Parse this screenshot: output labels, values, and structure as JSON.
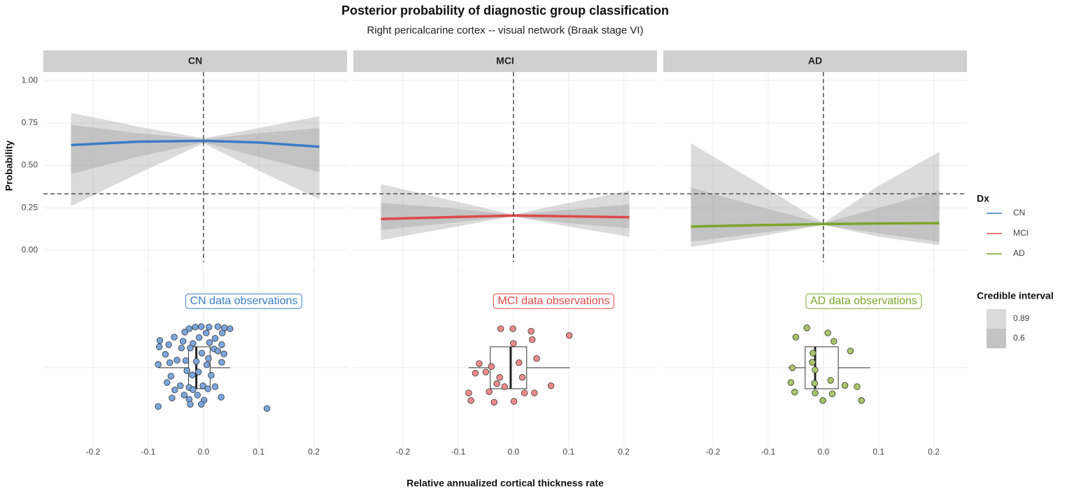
{
  "chart_data": {
    "type": "facet-ribbon",
    "title": "Posterior probability of diagnostic group classification",
    "subtitle": "Right pericalcarine cortex -- visual network (Braak stage VI)",
    "x_label": "Relative annualized cortical thickness rate",
    "y_label": "Probability",
    "xlim": [
      -0.29,
      0.26
    ],
    "xticks": [
      -0.2,
      -0.1,
      {
        "value": 0,
        "label": "0.0"
      },
      0.1,
      0.2
    ],
    "ylim": [
      -0.07,
      1.05
    ],
    "yticks": [
      {
        "value": 0,
        "label": "0.00"
      },
      0.25,
      {
        "value": 0.5,
        "label": "0.50"
      },
      0.75,
      {
        "value": 1,
        "label": "1.00"
      }
    ],
    "jitter_lim": [
      -1.9,
      2.43
    ],
    "threshold": 0.333,
    "vline": 0,
    "grid": true,
    "legend_title": "Dx",
    "ci_title": "Credible interval",
    "ci_levels": [
      0.89,
      0.6
    ],
    "band_color": "#999999",
    "x": [
      -0.24,
      -0.12,
      0,
      0.1,
      0.21
    ],
    "facets": [
      {
        "name": "CN",
        "color": "#3a7cc7",
        "point_color": "#7aa6dd",
        "label": "CN data observations",
        "mean": [
          0.62,
          0.64,
          0.645,
          0.635,
          0.61
        ],
        "lo89": [
          0.26,
          0.45,
          0.63,
          0.47,
          0.3
        ],
        "hi89": [
          0.81,
          0.73,
          0.66,
          0.72,
          0.79
        ],
        "lo60": [
          0.45,
          0.55,
          0.635,
          0.55,
          0.46
        ],
        "hi60": [
          0.74,
          0.69,
          0.655,
          0.69,
          0.72
        ],
        "points": {
          "x": [
            -0.026,
            -0.015,
            -0.004,
            0.01,
            0.026,
            0.038,
            0.048,
            -0.034,
            0.005,
            0.034,
            -0.079,
            -0.053,
            -0.037,
            -0.008,
            0.021,
            -0.08,
            -0.063,
            -0.019,
            0.011,
            0.033,
            -0.04,
            -0.024,
            0.019,
            0.026,
            -0.069,
            -0.003,
            0.037,
            -0.048,
            -0.032,
            -0.013,
            0.009,
            -0.082,
            -0.061,
            0.006,
            0.033,
            -0.03,
            -0.009,
            -0.059,
            -0.02,
            0.014,
            -0.066,
            -0.042,
            -0.026,
            -0.001,
            0.021,
            -0.052,
            -0.019,
            0.008,
            -0.035,
            -0.011,
            0.032,
            -0.057,
            -0.026,
            0.001,
            -0.082,
            -0.024,
            -0.004,
            0.115
          ],
          "jitter": [
            0.93,
            0.97,
            0.98,
            0.97,
            0.98,
            0.95,
            0.93,
            0.85,
            0.83,
            0.83,
            0.65,
            0.73,
            0.63,
            0.72,
            0.7,
            0.5,
            0.55,
            0.58,
            0.6,
            0.55,
            0.47,
            0.47,
            0.45,
            0.4,
            0.32,
            0.35,
            0.33,
            0.18,
            0.17,
            0.15,
            0.22,
            0.08,
            0.12,
            0.07,
            0.13,
            -0.07,
            -0.1,
            -0.2,
            -0.17,
            -0.18,
            -0.35,
            -0.43,
            -0.47,
            -0.43,
            -0.45,
            -0.53,
            -0.52,
            -0.5,
            -0.65,
            -0.65,
            -0.7,
            -0.72,
            -0.75,
            -0.77,
            -0.92,
            -0.87,
            -0.87,
            -0.97
          ]
        },
        "box": {
          "whisker_low": -0.081,
          "q1": -0.027,
          "median": -0.013,
          "q3": 0.012,
          "whisker_high": 0.048
        }
      },
      {
        "name": "MCI",
        "color": "#e04848",
        "point_color": "#ef8a8a",
        "label": "MCI data observations",
        "mean": [
          0.185,
          0.195,
          0.205,
          0.2,
          0.195
        ],
        "lo89": [
          0.06,
          0.13,
          0.2,
          0.14,
          0.08
        ],
        "hi89": [
          0.39,
          0.3,
          0.21,
          0.28,
          0.35
        ],
        "lo60": [
          0.12,
          0.16,
          0.2,
          0.16,
          0.13
        ],
        "hi60": [
          0.28,
          0.25,
          0.21,
          0.24,
          0.27
        ],
        "points": {
          "x": [
            -0.023,
            -0.001,
            0.032,
            0.101,
            0.034,
            0.0,
            -0.062,
            -0.04,
            0.01,
            0.042,
            -0.069,
            -0.05,
            -0.025,
            -0.03,
            -0.016,
            0.016,
            0.068,
            -0.081,
            -0.044,
            0.02,
            0.038,
            -0.077,
            -0.035,
            0.001
          ],
          "jitter": [
            0.93,
            0.93,
            0.87,
            0.77,
            0.67,
            0.58,
            0.1,
            0.03,
            0.12,
            0.22,
            -0.13,
            -0.1,
            -0.23,
            -0.38,
            -0.45,
            -0.23,
            -0.43,
            -0.6,
            -0.57,
            -0.6,
            -0.6,
            -0.78,
            -0.82,
            -0.8
          ]
        },
        "box": {
          "whisker_low": -0.081,
          "q1": -0.042,
          "median": -0.005,
          "q3": 0.024,
          "whisker_high": 0.102
        }
      },
      {
        "name": "AD",
        "color": "#7aa52a",
        "point_color": "#a9c46a",
        "label": "AD data observations",
        "mean": [
          0.14,
          0.148,
          0.155,
          0.158,
          0.16
        ],
        "lo89": [
          0.02,
          0.08,
          0.15,
          0.08,
          0.03
        ],
        "hi89": [
          0.63,
          0.4,
          0.16,
          0.38,
          0.58
        ],
        "lo60": [
          0.05,
          0.1,
          0.15,
          0.1,
          0.05
        ],
        "hi60": [
          0.37,
          0.26,
          0.16,
          0.25,
          0.35
        ],
        "points": {
          "x": [
            -0.03,
            0.008,
            -0.05,
            0.019,
            -0.019,
            -0.02,
            0.049,
            -0.056,
            -0.015,
            -0.059,
            -0.016,
            0.013,
            0.039,
            -0.052,
            -0.015,
            0.061,
            0.016,
            -0.001,
            0.069
          ],
          "jitter": [
            0.95,
            0.83,
            0.73,
            0.63,
            0.35,
            0.13,
            0.4,
            0,
            -0.05,
            -0.35,
            -0.37,
            -0.3,
            -0.42,
            -0.58,
            -0.6,
            -0.45,
            -0.62,
            -0.78,
            -0.78
          ]
        },
        "box": {
          "whisker_low": -0.064,
          "q1": -0.033,
          "median": -0.015,
          "q3": 0.027,
          "whisker_high": 0.085
        }
      }
    ]
  }
}
